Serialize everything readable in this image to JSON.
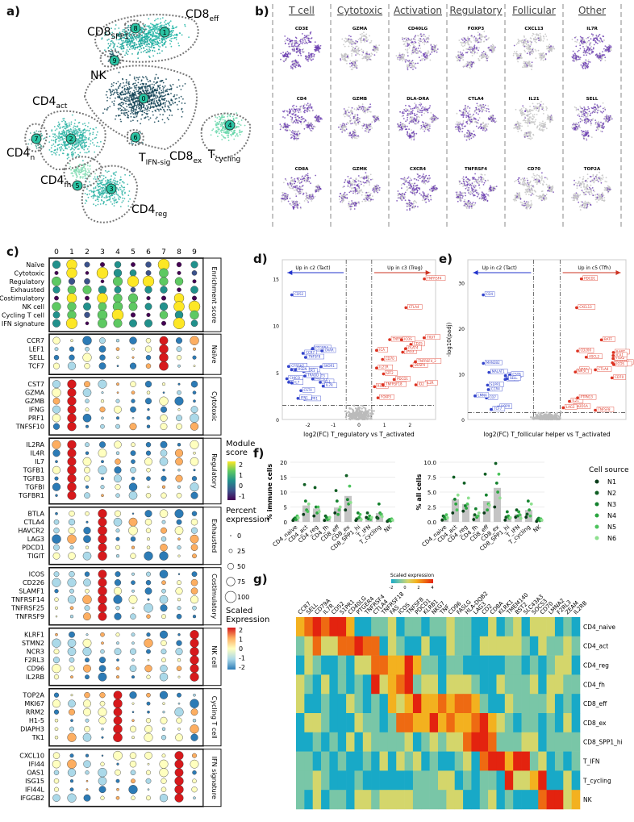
{
  "panels": {
    "a": "a)",
    "b": "b)",
    "c": "c)",
    "d": "d)",
    "e": "e)",
    "f": "f)",
    "g": "g)"
  },
  "umap_a": {
    "clusters": [
      {
        "id": "0"
      },
      {
        "id": "1"
      },
      {
        "id": "2"
      },
      {
        "id": "3"
      },
      {
        "id": "4"
      },
      {
        "id": "5"
      },
      {
        "id": "6"
      },
      {
        "id": "7"
      },
      {
        "id": "8"
      },
      {
        "id": "9"
      }
    ],
    "labels": [
      {
        "main": "CD8",
        "sub": "SPP1"
      },
      {
        "main": "CD8",
        "sub": "eff"
      },
      {
        "main": "NK",
        "sub": ""
      },
      {
        "main": "CD4",
        "sub": "act"
      },
      {
        "main": "CD8",
        "sub": "ex"
      },
      {
        "main": "T",
        "sub": "cycling"
      },
      {
        "main": "CD4",
        "sub": "n"
      },
      {
        "main": "T",
        "sub": "IFN-sig"
      },
      {
        "main": "CD4",
        "sub": "fh"
      },
      {
        "main": "CD4",
        "sub": "reg"
      }
    ]
  },
  "panel_b": {
    "categories": [
      "T cell",
      "Cytotoxic",
      "Activation",
      "Regulatory",
      "Follicular",
      "Other"
    ],
    "genes": [
      [
        "CD3E",
        "CD4",
        "CD8A"
      ],
      [
        "GZMA",
        "GZMB",
        "GZMK"
      ],
      [
        "CD40LG",
        "DLA-DRA",
        "CXCR4"
      ],
      [
        "FOXP3",
        "CTLA4",
        "TNFRSF4"
      ],
      [
        "CXCL13",
        "IL21",
        "CD70"
      ],
      [
        "IL7R",
        "SELL",
        "TOP2A"
      ]
    ]
  },
  "panel_c": {
    "clusters": [
      "0",
      "1",
      "2",
      "3",
      "4",
      "5",
      "6",
      "7",
      "8",
      "9"
    ],
    "enrichment": {
      "section": "Enrichment score",
      "rows": [
        "Naïve",
        "Cytotoxic",
        "Regulatory",
        "Exhausted",
        "Costimulatory",
        "NK cell",
        "Cycling T cell",
        "IFN signature"
      ]
    },
    "sections": [
      {
        "name": "Naïve",
        "genes": [
          "CCR7",
          "LEF1",
          "SELL",
          "TCF7"
        ]
      },
      {
        "name": "Cytotoxic",
        "genes": [
          "CST7",
          "GZMA",
          "GZMB",
          "IFNG",
          "PRF1",
          "TNFSF10"
        ]
      },
      {
        "name": "Regulatory",
        "genes": [
          "IL2RA",
          "IL4R",
          "IL7",
          "TGFB1",
          "TGFB3",
          "TGFBI",
          "TGFBR1"
        ]
      },
      {
        "name": "Exhausted",
        "genes": [
          "BTLA",
          "CTLA4",
          "HAVCR2",
          "LAG3",
          "PDCD1",
          "TIGIT"
        ]
      },
      {
        "name": "Costimulatory",
        "genes": [
          "ICOS",
          "CD226",
          "SLAMF1",
          "TNFRSF14",
          "TNFRSF25",
          "TNFRSF9"
        ]
      },
      {
        "name": "NK cell",
        "genes": [
          "KLRF1",
          "STMN2",
          "NCR3",
          "F2RL3",
          "CD96",
          "IL2RB"
        ]
      },
      {
        "name": "Cycling T cell",
        "genes": [
          "TOP2A",
          "MKI67",
          "RRM2",
          "H1-5",
          "DIAPH3",
          "TK1"
        ]
      },
      {
        "name": "IFN signature",
        "genes": [
          "CXCL10",
          "IFI44",
          "OAS1",
          "ISG15",
          "IFI44L",
          "IFGGB2"
        ]
      }
    ],
    "legend": {
      "module_title": "Module score",
      "module_ticks": [
        "2",
        "1",
        "0",
        "-1"
      ],
      "percent_title": "Percent expression",
      "percent_ticks": [
        "0",
        "25",
        "50",
        "75",
        "100"
      ],
      "scaled_title": "Scaled Expression",
      "scaled_ticks": [
        "2",
        "1",
        "0",
        "-1",
        "-2"
      ]
    }
  },
  "panel_d": {
    "left_label": "Up in c2 (Tact)",
    "right_label": "Up in c3 (Treg)",
    "xlabel": "log2(FC) T_regulatory vs T_activated",
    "ylabel": "",
    "yticks": [
      "0",
      "5",
      "10",
      "15"
    ],
    "xticks": [
      "-2",
      "-1",
      "0",
      "1",
      "2"
    ],
    "blue_genes": [
      "CD52",
      "SELL",
      "CST4",
      "FOLL2",
      "IL7R",
      "MK16",
      "LEF1",
      "CCR7",
      "S1PR1",
      "MCM8",
      "LAT3",
      "PTGER4",
      "TNFSF8",
      "CD44",
      "CFRSH2",
      "IFN1",
      "OVAR",
      "CHICO",
      "TOX3",
      "TRADD",
      "SKOR1",
      "RSEN",
      "IL7"
    ],
    "red_genes": [
      "TNFRSF4",
      "CTLA4",
      "IL21R",
      "TNFRSF1",
      "LAG3",
      "CD70",
      "IZF2",
      "RGS1",
      "IL2R",
      "TNFRSF18",
      "DUSP4",
      "CD25",
      "PLAT4",
      "TIGIT",
      "TNFRSF4_2",
      "ID2",
      "ICA",
      "ICOS",
      "FOXP3",
      "PDCD1"
    ]
  },
  "panel_e": {
    "left_label": "Up in c2 (Tact)",
    "right_label": "Up in c5 (Tfh)",
    "xlabel": "log2(FC) T_follicular helper vs T_activated",
    "ylabel": "-log10(padj)",
    "yticks": [
      "0",
      "10",
      "20",
      "30"
    ],
    "blue_genes": [
      "CD4",
      "HOPX",
      "CD7",
      "KLRB1",
      "CCR4",
      "MALAT1",
      "LMNA",
      "S1PR1",
      "TCF7",
      "RBPJ",
      "CST8",
      "SELL",
      "MAN2B2"
    ],
    "red_genes": [
      "PDCD1",
      "CXCL13",
      "TNFRSF4",
      "CD70",
      "TIGIT",
      "ICOS",
      "TOX2",
      "IL21",
      "CD200",
      "BATF",
      "SH2D1A",
      "MAF",
      "CTLA4",
      "ASCL2",
      "PTPN13",
      "IL6ST",
      "NR3C1",
      "TNFSF8",
      "LAG3",
      "ICA1"
    ]
  },
  "panel_f": {
    "left_ylabel": "% immune cells",
    "right_ylabel": "% all cells",
    "left_yticks": [
      "0",
      "5",
      "10",
      "15",
      "20"
    ],
    "right_yticks": [
      "0.0",
      "2.5",
      "5.0",
      "7.5",
      "10.0"
    ],
    "categories": [
      "CD4_naive",
      "CD4_act",
      "CD4_reg",
      "CD4_fh",
      "CD8_eff",
      "CD8_ex",
      "CD8_SPP1_hi",
      "T_IFN",
      "T_cycling",
      "NK"
    ],
    "legend_title": "Cell source",
    "sources": [
      {
        "name": "N1",
        "color": "#0b3d1a"
      },
      {
        "name": "N2",
        "color": "#0f5e23"
      },
      {
        "name": "N3",
        "color": "#14822e"
      },
      {
        "name": "N4",
        "color": "#2aa53f"
      },
      {
        "name": "N5",
        "color": "#4cc35c"
      },
      {
        "name": "N6",
        "color": "#8ee08f"
      }
    ],
    "chart_data": [
      {
        "type": "bar",
        "title": "",
        "ylabel": "% immune cells",
        "ylim": [
          0,
          20
        ],
        "categories": [
          "CD4_naive",
          "CD4_act",
          "CD4_reg",
          "CD4_fh",
          "CD8_eff",
          "CD8_ex",
          "CD8_SPP1_hi",
          "T_IFN",
          "T_cycling",
          "NK"
        ],
        "values": [
          1.2,
          5.5,
          4.5,
          1.2,
          4.8,
          8.7,
          1.5,
          1.7,
          3.0,
          0.5
        ],
        "points": [
          [
            0.5,
            1.0,
            1.3,
            0.8,
            2.0,
            1.4
          ],
          [
            2.5,
            12.5,
            7.0,
            4.0,
            3.5,
            6.0
          ],
          [
            2.0,
            11.5,
            5.0,
            3.0,
            5.0,
            3.5
          ],
          [
            0.5,
            2.0,
            1.5,
            0.8,
            1.0,
            1.5
          ],
          [
            3.0,
            10.5,
            7.0,
            2.5,
            4.0,
            5.0
          ],
          [
            4.0,
            15.5,
            7.5,
            6.0,
            12.0,
            6.5
          ],
          [
            0.5,
            1.0,
            3.0,
            1.5,
            2.5,
            0.8
          ],
          [
            1.5,
            3.0,
            1.0,
            2.0,
            0.8,
            1.5
          ],
          [
            1.5,
            1.2,
            6.0,
            3.0,
            2.5,
            1.8
          ],
          [
            0.2,
            0.5,
            0.8,
            0.3,
            1.0,
            0.6
          ]
        ]
      },
      {
        "type": "bar",
        "title": "",
        "ylabel": "% all cells",
        "ylim": [
          0,
          10
        ],
        "categories": [
          "CD4_naive",
          "CD4_act",
          "CD4_reg",
          "CD4_fh",
          "CD8_eff",
          "CD8_ex",
          "CD8_SPP1_hi",
          "T_IFN",
          "T_cycling",
          "NK"
        ],
        "values": [
          0.7,
          3.8,
          3.0,
          1.2,
          3.5,
          5.7,
          0.9,
          1.3,
          2.0,
          0.3
        ],
        "points": [
          [
            0.3,
            1.0,
            0.8,
            0.5,
            1.2,
            0.7
          ],
          [
            1.5,
            7.5,
            3.8,
            3.0,
            2.0,
            4.5
          ],
          [
            1.8,
            6.5,
            2.7,
            2.3,
            3.0,
            4.0
          ],
          [
            0.4,
            1.2,
            2.2,
            0.8,
            1.0,
            1.5
          ],
          [
            1.5,
            8.0,
            4.5,
            2.0,
            3.0,
            2.8
          ],
          [
            2.5,
            9.8,
            6.5,
            5.0,
            8.0,
            4.0
          ],
          [
            0.3,
            0.8,
            1.7,
            1.0,
            0.6,
            0.7
          ],
          [
            0.8,
            2.0,
            1.0,
            1.7,
            1.2,
            0.6
          ],
          [
            0.8,
            1.3,
            3.5,
            2.0,
            1.0,
            3.0
          ],
          [
            0.1,
            0.4,
            0.6,
            0.2,
            0.5,
            0.3
          ]
        ]
      }
    ]
  },
  "panel_g": {
    "legend_title": "Scaled expression",
    "legend_ticks": [
      "-2",
      "0",
      "2",
      "4"
    ],
    "columns": [
      "CCR7",
      "SELL",
      "CD79A",
      "IL7R",
      "CD52",
      "S1PR1",
      "CD40LG",
      "PTGER4",
      "TNFRSF4",
      "CTLA4",
      "TNFRSF18",
      "FAS",
      "ICOS",
      "TNFSF8",
      "PDCD1",
      "KLRB1",
      "NKG7",
      "TNF",
      "CD96",
      "FASLG",
      "HLA-DQB2",
      "LAG3",
      "CD2",
      "CD8A",
      "KLRK1",
      "TMEM140",
      "BST2",
      "SLC43A3",
      "SOCS3",
      "CD70",
      "LMNA2",
      "F2RL3",
      "ZEAM",
      "IL2RB"
    ],
    "rows": [
      "CD4_naive",
      "CD4_act",
      "CD4_reg",
      "CD4_fh",
      "CD8_eff",
      "CD8_ex",
      "CD8_SPP1_hi",
      "T_IFN",
      "T_cycling",
      "NK"
    ]
  }
}
